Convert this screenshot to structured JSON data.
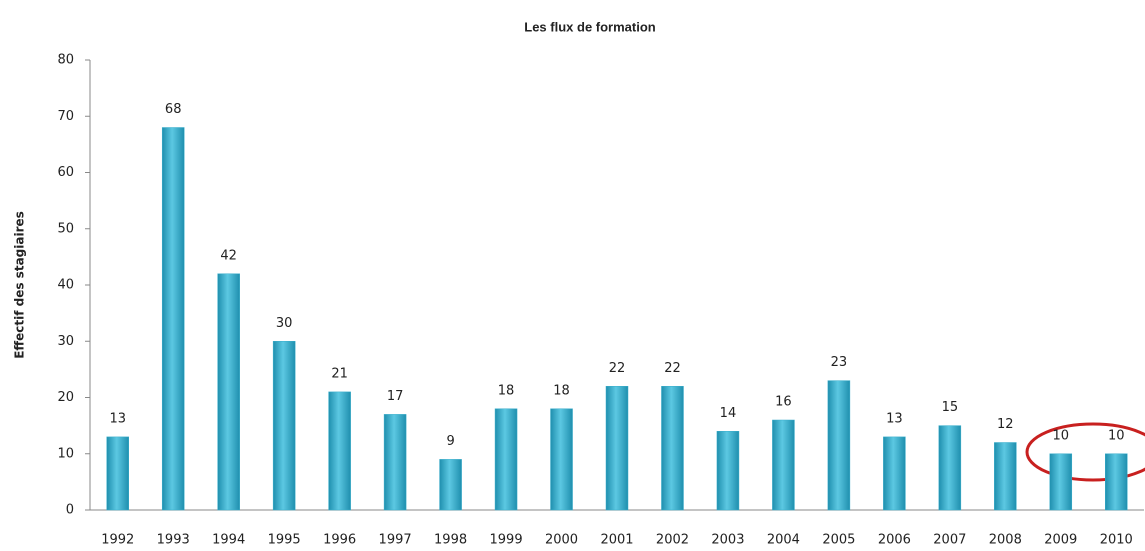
{
  "chart_data": {
    "type": "bar",
    "title": "Les flux de formation",
    "y_label": "Effectif des stagiaires",
    "categories": [
      "1992",
      "1993",
      "1994",
      "1995",
      "1996",
      "1997",
      "1998",
      "1999",
      "2000",
      "2001",
      "2002",
      "2003",
      "2004",
      "2005",
      "2006",
      "2007",
      "2008",
      "2009",
      "2010"
    ],
    "values": [
      13,
      68,
      42,
      30,
      21,
      17,
      9,
      18,
      18,
      22,
      22,
      14,
      16,
      23,
      13,
      15,
      12,
      10,
      10
    ],
    "color": "#3aaecb",
    "ylim": [
      0,
      80
    ],
    "yticks": [
      0,
      10,
      20,
      30,
      40,
      50,
      60,
      70,
      80
    ],
    "grid": false
  }
}
